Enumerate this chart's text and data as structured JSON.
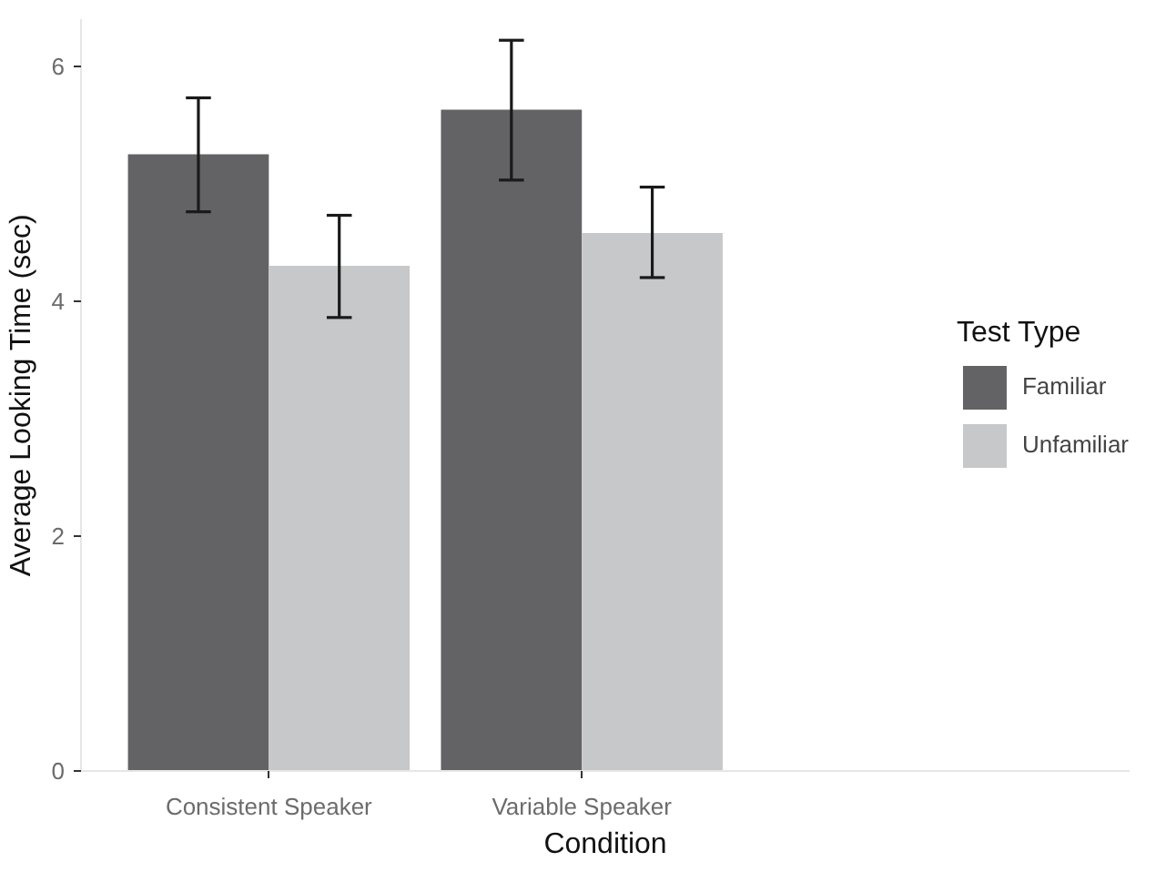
{
  "chart_data": {
    "type": "bar",
    "xlabel": "Condition",
    "ylabel": "Average Looking Time (sec)",
    "legend_title": "Test Type",
    "categories": [
      "Consistent Speaker",
      "Variable Speaker"
    ],
    "series": [
      {
        "name": "Familiar",
        "color": "#636365",
        "values": [
          5.25,
          5.63
        ],
        "errors": [
          [
            4.76,
            5.73
          ],
          [
            5.03,
            6.22
          ]
        ]
      },
      {
        "name": "Unfamiliar",
        "color": "#c7c8ca",
        "values": [
          4.3,
          4.58
        ],
        "errors": [
          [
            3.86,
            4.73
          ],
          [
            4.2,
            4.97
          ]
        ]
      }
    ],
    "ylim": [
      0,
      6.4
    ],
    "yticks": [
      0,
      2,
      4,
      6
    ],
    "legend": "right"
  }
}
